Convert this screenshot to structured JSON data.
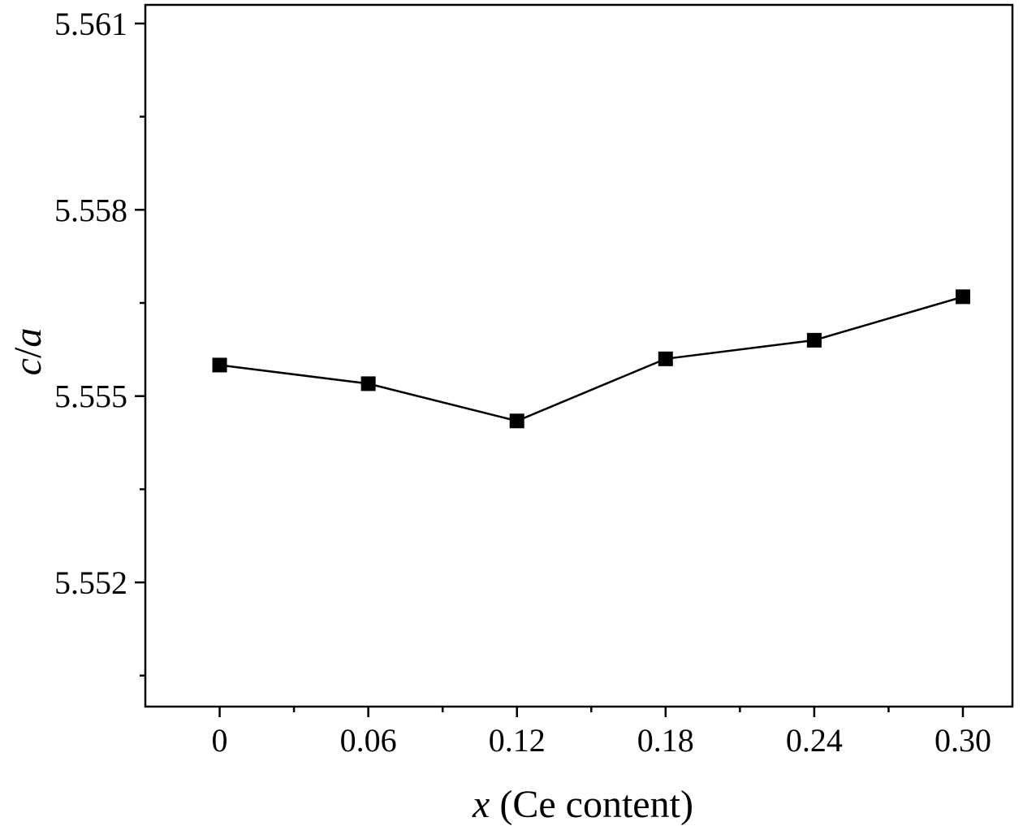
{
  "chart_data": {
    "type": "line",
    "xlabel_var": "x",
    "xlabel_rest": " (Ce content)",
    "ylabel_num": "c",
    "ylabel_sep": "/",
    "ylabel_den": "a",
    "xlim": [
      -0.03,
      0.32
    ],
    "ylim": [
      5.55,
      5.5613
    ],
    "x_ticks": [
      0,
      0.06,
      0.12,
      0.18,
      0.24,
      0.3
    ],
    "x_tick_labels": [
      "0",
      "0.06",
      "0.12",
      "0.18",
      "0.24",
      "0.30"
    ],
    "x_minor_ticks": [
      0.03,
      0.09,
      0.15,
      0.21,
      0.27
    ],
    "y_ticks": [
      5.552,
      5.555,
      5.558,
      5.561
    ],
    "y_tick_labels": [
      "5.552",
      "5.555",
      "5.558",
      "5.561"
    ],
    "y_minor_ticks": [
      5.5505,
      5.5535,
      5.5565,
      5.5595
    ],
    "grid": false,
    "marker": "square",
    "colors": {
      "line": "#000000",
      "marker": "#000000",
      "axis": "#000000"
    },
    "series": [
      {
        "x": [
          0,
          0.06,
          0.12,
          0.18,
          0.24,
          0.3
        ],
        "values": [
          5.5555,
          5.5552,
          5.5546,
          5.5556,
          5.5559,
          5.5566
        ]
      }
    ]
  }
}
